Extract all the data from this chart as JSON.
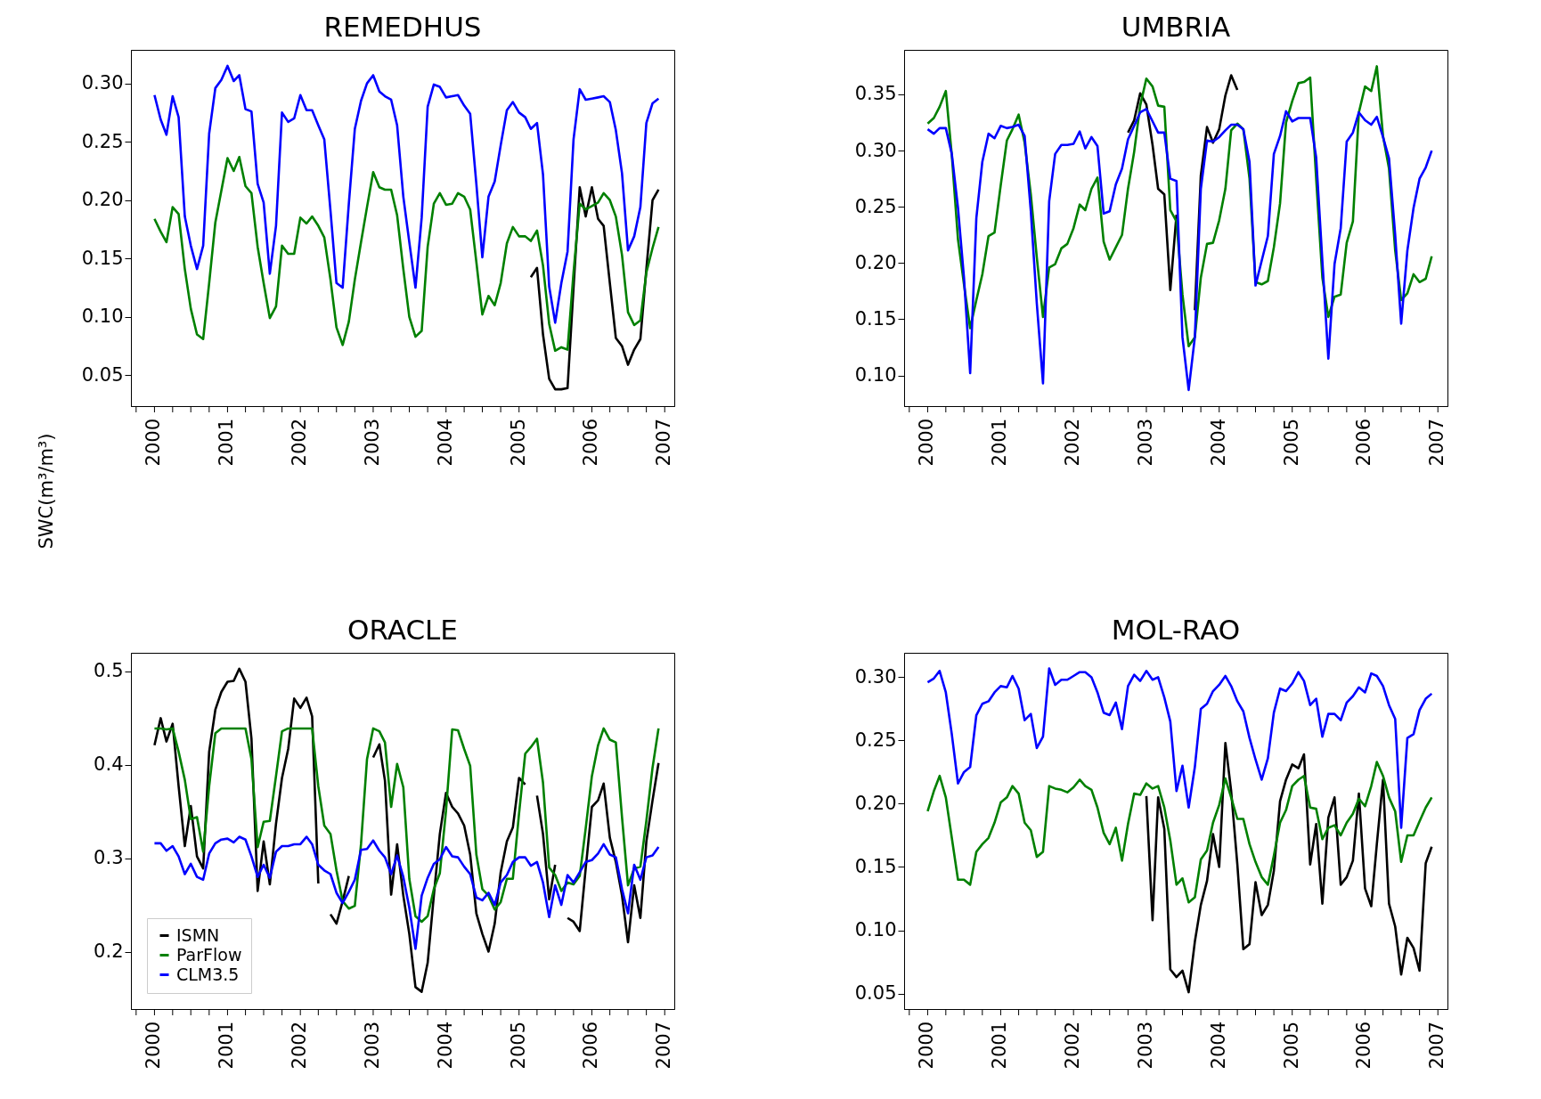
{
  "chart_data": [
    {
      "type": "line",
      "title": "REMEDHUS",
      "ylabel": "SWC(m³/m³)",
      "grid": false,
      "x": [
        "2000-01",
        "2000-02",
        "2000-03",
        "2000-04",
        "2000-05",
        "2000-06",
        "2000-07",
        "2000-08",
        "2000-09",
        "2000-10",
        "2000-11",
        "2000-12",
        "2001-01",
        "2001-02",
        "2001-03",
        "2001-04",
        "2001-05",
        "2001-06",
        "2001-07",
        "2001-08",
        "2001-09",
        "2001-10",
        "2001-11",
        "2001-12",
        "2002-01",
        "2002-02",
        "2002-03",
        "2002-04",
        "2002-05",
        "2002-06",
        "2002-07",
        "2002-08",
        "2002-09",
        "2002-10",
        "2002-11",
        "2002-12",
        "2003-01",
        "2003-02",
        "2003-03",
        "2003-04",
        "2003-05",
        "2003-06",
        "2003-07",
        "2003-08",
        "2003-09",
        "2003-10",
        "2003-11",
        "2003-12",
        "2004-01",
        "2004-02",
        "2004-03",
        "2004-04",
        "2004-05",
        "2004-06",
        "2004-07",
        "2004-08",
        "2004-09",
        "2004-10",
        "2004-11",
        "2004-12",
        "2005-01",
        "2005-02",
        "2005-03",
        "2005-04",
        "2005-05",
        "2005-06",
        "2005-07",
        "2005-08",
        "2005-09",
        "2005-10",
        "2005-11",
        "2005-12",
        "2006-01",
        "2006-02",
        "2006-03",
        "2006-04",
        "2006-05",
        "2006-06",
        "2006-07",
        "2006-08",
        "2006-09",
        "2006-10",
        "2006-11",
        "2006-12"
      ],
      "series": [
        {
          "color": "#000000",
          "x": [
            "2005-03",
            "2005-04",
            "2005-05",
            "2005-06",
            "2005-07",
            "2005-08",
            "2005-09",
            "2005-10",
            "2005-11",
            "2005-12",
            "2006-01",
            "2006-02",
            "2006-03",
            "2006-04",
            "2006-05",
            "2006-06",
            "2006-07",
            "2006-08",
            "2006-09",
            "2006-10",
            "2006-11",
            "2006-12"
          ],
          "values": [
            0.134,
            0.142,
            0.085,
            0.047,
            0.038,
            0.038,
            0.039,
            0.125,
            0.211,
            0.186,
            0.211,
            0.184,
            0.178,
            0.129,
            0.082,
            0.075,
            0.059,
            0.072,
            0.081,
            0.141,
            0.2,
            0.209
          ]
        },
        {
          "color": "#008000",
          "values": [
            0.184,
            0.173,
            0.164,
            0.194,
            0.188,
            0.141,
            0.107,
            0.085,
            0.081,
            0.129,
            0.181,
            0.208,
            0.236,
            0.225,
            0.237,
            0.212,
            0.206,
            0.16,
            0.129,
            0.099,
            0.109,
            0.161,
            0.154,
            0.154,
            0.185,
            0.18,
            0.186,
            0.178,
            0.168,
            0.132,
            0.091,
            0.076,
            0.096,
            0.132,
            0.164,
            0.194,
            0.224,
            0.211,
            0.209,
            0.209,
            0.187,
            0.141,
            0.1,
            0.083,
            0.088,
            0.16,
            0.197,
            0.206,
            0.196,
            0.197,
            0.206,
            0.203,
            0.192,
            0.147,
            0.102,
            0.118,
            0.11,
            0.129,
            0.163,
            0.177,
            0.169,
            0.169,
            0.165,
            0.174,
            0.144,
            0.094,
            0.071,
            0.074,
            0.072,
            0.138,
            0.197,
            0.192,
            0.195,
            0.198,
            0.206,
            0.2,
            0.186,
            0.153,
            0.104,
            0.093,
            0.097,
            0.138,
            0.159,
            0.177
          ]
        },
        {
          "color": "#0000ff",
          "values": [
            0.29,
            0.269,
            0.256,
            0.289,
            0.271,
            0.186,
            0.161,
            0.141,
            0.161,
            0.257,
            0.296,
            0.303,
            0.315,
            0.302,
            0.307,
            0.278,
            0.276,
            0.214,
            0.198,
            0.137,
            0.178,
            0.275,
            0.267,
            0.27,
            0.29,
            0.277,
            0.277,
            0.264,
            0.252,
            0.191,
            0.129,
            0.125,
            0.197,
            0.261,
            0.285,
            0.3,
            0.307,
            0.293,
            0.289,
            0.286,
            0.264,
            0.203,
            0.164,
            0.125,
            0.185,
            0.28,
            0.299,
            0.297,
            0.288,
            0.289,
            0.29,
            0.281,
            0.274,
            0.214,
            0.151,
            0.203,
            0.216,
            0.247,
            0.277,
            0.284,
            0.275,
            0.271,
            0.261,
            0.266,
            0.222,
            0.126,
            0.095,
            0.129,
            0.156,
            0.252,
            0.295,
            0.286,
            0.287,
            0.288,
            0.289,
            0.284,
            0.26,
            0.223,
            0.157,
            0.169,
            0.194,
            0.266,
            0.283,
            0.287
          ]
        }
      ],
      "xlim": [
        "1999-09-05",
        "2007-02-18"
      ],
      "ylim": [
        0.0236,
        0.3287
      ],
      "xticks": [
        {
          "value": "1999-10",
          "label": null
        },
        "2000",
        {
          "value": "2000-04",
          "label": null
        },
        {
          "value": "2000-07",
          "label": null
        },
        {
          "value": "2000-10",
          "label": null
        },
        "2001",
        {
          "value": "2001-04",
          "label": null
        },
        {
          "value": "2001-07",
          "label": null
        },
        {
          "value": "2001-10",
          "label": null
        },
        "2002",
        {
          "value": "2002-04",
          "label": null
        },
        {
          "value": "2002-07",
          "label": null
        },
        {
          "value": "2002-10",
          "label": null
        },
        "2003",
        {
          "value": "2003-04",
          "label": null
        },
        {
          "value": "2003-07",
          "label": null
        },
        {
          "value": "2003-10",
          "label": null
        },
        "2004",
        {
          "value": "2004-04",
          "label": null
        },
        {
          "value": "2004-07",
          "label": null
        },
        {
          "value": "2004-10",
          "label": null
        },
        "2005",
        {
          "value": "2005-04",
          "label": null
        },
        {
          "value": "2005-07",
          "label": null
        },
        {
          "value": "2005-10",
          "label": null
        },
        "2006",
        {
          "value": "2006-04",
          "label": null
        },
        {
          "value": "2006-07",
          "label": null
        },
        {
          "value": "2006-10",
          "label": null
        },
        "2007"
      ],
      "yticks": [
        {
          "value": 0.05,
          "label": "0.05"
        },
        {
          "value": 0.1,
          "label": "0.10"
        },
        {
          "value": 0.15,
          "label": "0.15"
        },
        {
          "value": 0.2,
          "label": "0.20"
        },
        {
          "value": 0.25,
          "label": "0.25"
        },
        {
          "value": 0.3,
          "label": "0.30"
        }
      ]
    },
    {
      "type": "line",
      "title": "UMBRIA",
      "grid": false,
      "x": [
        "2000-01",
        "2000-02",
        "2000-03",
        "2000-04",
        "2000-05",
        "2000-06",
        "2000-07",
        "2000-08",
        "2000-09",
        "2000-10",
        "2000-11",
        "2000-12",
        "2001-01",
        "2001-02",
        "2001-03",
        "2001-04",
        "2001-05",
        "2001-06",
        "2001-07",
        "2001-08",
        "2001-09",
        "2001-10",
        "2001-11",
        "2001-12",
        "2002-01",
        "2002-02",
        "2002-03",
        "2002-04",
        "2002-05",
        "2002-06",
        "2002-07",
        "2002-08",
        "2002-09",
        "2002-10",
        "2002-11",
        "2002-12",
        "2003-01",
        "2003-02",
        "2003-03",
        "2003-04",
        "2003-05",
        "2003-06",
        "2003-07",
        "2003-08",
        "2003-09",
        "2003-10",
        "2003-11",
        "2003-12",
        "2004-01",
        "2004-02",
        "2004-03",
        "2004-04",
        "2004-05",
        "2004-06",
        "2004-07",
        "2004-08",
        "2004-09",
        "2004-10",
        "2004-11",
        "2004-12",
        "2005-01",
        "2005-02",
        "2005-03",
        "2005-04",
        "2005-05",
        "2005-06",
        "2005-07",
        "2005-08",
        "2005-09",
        "2005-10",
        "2005-11",
        "2005-12",
        "2006-01",
        "2006-02",
        "2006-03",
        "2006-04",
        "2006-05",
        "2006-06",
        "2006-07",
        "2006-08",
        "2006-09",
        "2006-10",
        "2006-11",
        "2006-12"
      ],
      "series": [
        {
          "color": "#000000",
          "x": [
            "2002-10",
            "2002-11",
            "2002-12",
            "2003-01",
            "2003-02",
            "2003-03",
            "2003-04",
            "2003-05",
            "2003-06",
            "2003-07",
            "2003-08",
            "2003-09",
            "2003-10",
            "2003-11",
            "2003-12",
            "2004-01",
            "2004-02",
            "2004-03",
            "2004-04"
          ],
          "values": [
            0.316,
            0.327,
            0.351,
            0.341,
            0.305,
            0.266,
            0.261,
            0.176,
            0.243,
            null,
            null,
            0.158,
            0.278,
            0.321,
            0.307,
            0.319,
            0.349,
            0.367,
            0.354
          ]
        },
        {
          "color": "#008000",
          "values": [
            0.324,
            0.329,
            0.339,
            0.353,
            0.296,
            0.221,
            0.181,
            0.142,
            0.167,
            0.19,
            0.224,
            0.227,
            0.269,
            0.309,
            0.319,
            0.332,
            0.307,
            0.261,
            0.205,
            0.152,
            0.196,
            0.199,
            0.213,
            0.217,
            0.231,
            0.252,
            0.247,
            0.266,
            0.276,
            0.219,
            0.203,
            0.214,
            0.225,
            0.266,
            0.299,
            0.34,
            0.364,
            0.357,
            0.34,
            0.339,
            0.247,
            0.237,
            0.172,
            0.126,
            0.134,
            0.187,
            0.217,
            0.218,
            0.238,
            0.266,
            0.318,
            0.324,
            0.319,
            0.275,
            0.183,
            0.181,
            0.184,
            0.214,
            0.253,
            0.325,
            0.344,
            0.36,
            0.361,
            0.365,
            0.275,
            0.187,
            0.152,
            0.17,
            0.172,
            0.218,
            0.237,
            0.334,
            0.357,
            0.353,
            0.375,
            0.313,
            0.284,
            0.211,
            0.167,
            0.173,
            0.19,
            0.183,
            0.186,
            0.206
          ]
        },
        {
          "color": "#0000ff",
          "values": [
            0.319,
            0.315,
            0.32,
            0.32,
            0.297,
            0.249,
            0.187,
            0.102,
            0.24,
            0.29,
            0.315,
            0.311,
            0.322,
            0.32,
            0.321,
            0.323,
            0.313,
            0.246,
            0.164,
            0.093,
            0.255,
            0.297,
            0.305,
            0.305,
            0.306,
            0.317,
            0.302,
            0.312,
            0.304,
            0.244,
            0.246,
            0.27,
            0.284,
            0.31,
            0.322,
            0.334,
            0.337,
            0.326,
            0.316,
            0.316,
            0.275,
            0.273,
            0.134,
            0.087,
            0.134,
            0.266,
            0.309,
            0.308,
            0.312,
            0.318,
            0.323,
            0.323,
            0.319,
            0.29,
            0.18,
            0.202,
            0.224,
            0.297,
            0.313,
            0.335,
            0.326,
            0.329,
            0.329,
            0.329,
            0.294,
            0.202,
            0.115,
            0.199,
            0.231,
            0.308,
            0.316,
            0.334,
            0.327,
            0.323,
            0.33,
            0.312,
            0.293,
            0.225,
            0.146,
            0.211,
            0.249,
            0.275,
            0.285,
            0.3
          ]
        }
      ],
      "xlim": [
        "1999-09-05",
        "2007-02-18"
      ],
      "ylim": [
        0.0727,
        0.3896
      ],
      "xticks": [
        {
          "value": "1999-10",
          "label": null
        },
        "2000",
        {
          "value": "2000-04",
          "label": null
        },
        {
          "value": "2000-07",
          "label": null
        },
        {
          "value": "2000-10",
          "label": null
        },
        "2001",
        {
          "value": "2001-04",
          "label": null
        },
        {
          "value": "2001-07",
          "label": null
        },
        {
          "value": "2001-10",
          "label": null
        },
        "2002",
        {
          "value": "2002-04",
          "label": null
        },
        {
          "value": "2002-07",
          "label": null
        },
        {
          "value": "2002-10",
          "label": null
        },
        "2003",
        {
          "value": "2003-04",
          "label": null
        },
        {
          "value": "2003-07",
          "label": null
        },
        {
          "value": "2003-10",
          "label": null
        },
        "2004",
        {
          "value": "2004-04",
          "label": null
        },
        {
          "value": "2004-07",
          "label": null
        },
        {
          "value": "2004-10",
          "label": null
        },
        "2005",
        {
          "value": "2005-04",
          "label": null
        },
        {
          "value": "2005-07",
          "label": null
        },
        {
          "value": "2005-10",
          "label": null
        },
        "2006",
        {
          "value": "2006-04",
          "label": null
        },
        {
          "value": "2006-07",
          "label": null
        },
        {
          "value": "2006-10",
          "label": null
        },
        "2007"
      ],
      "yticks": [
        {
          "value": 0.1,
          "label": "0.10"
        },
        {
          "value": 0.15,
          "label": "0.15"
        },
        {
          "value": 0.2,
          "label": "0.20"
        },
        {
          "value": 0.25,
          "label": "0.25"
        },
        {
          "value": 0.3,
          "label": "0.30"
        },
        {
          "value": 0.35,
          "label": "0.35"
        }
      ]
    },
    {
      "type": "line",
      "title": "ORACLE",
      "grid": false,
      "legend": "bottom left",
      "x": [
        "2000-01",
        "2000-02",
        "2000-03",
        "2000-04",
        "2000-05",
        "2000-06",
        "2000-07",
        "2000-08",
        "2000-09",
        "2000-10",
        "2000-11",
        "2000-12",
        "2001-01",
        "2001-02",
        "2001-03",
        "2001-04",
        "2001-05",
        "2001-06",
        "2001-07",
        "2001-08",
        "2001-09",
        "2001-10",
        "2001-11",
        "2001-12",
        "2002-01",
        "2002-02",
        "2002-03",
        "2002-04",
        "2002-05",
        "2002-06",
        "2002-07",
        "2002-08",
        "2002-09",
        "2002-10",
        "2002-11",
        "2002-12",
        "2003-01",
        "2003-02",
        "2003-03",
        "2003-04",
        "2003-05",
        "2003-06",
        "2003-07",
        "2003-08",
        "2003-09",
        "2003-10",
        "2003-11",
        "2003-12",
        "2004-01",
        "2004-02",
        "2004-03",
        "2004-04",
        "2004-05",
        "2004-06",
        "2004-07",
        "2004-08",
        "2004-09",
        "2004-10",
        "2004-11",
        "2004-12",
        "2005-01",
        "2005-02",
        "2005-03",
        "2005-04",
        "2005-05",
        "2005-06",
        "2005-07",
        "2005-08",
        "2005-09",
        "2005-10",
        "2005-11",
        "2005-12",
        "2006-01",
        "2006-02",
        "2006-03",
        "2006-04",
        "2006-05",
        "2006-06",
        "2006-07",
        "2006-08",
        "2006-09",
        "2006-10",
        "2006-11",
        "2006-12"
      ],
      "series": [
        {
          "name": "ISMN",
          "color": "#000000",
          "values": [
            0.421,
            0.45,
            0.425,
            0.444,
            0.377,
            0.313,
            0.356,
            0.302,
            0.289,
            0.414,
            0.459,
            0.478,
            0.489,
            0.49,
            0.503,
            0.489,
            0.428,
            0.265,
            0.318,
            0.272,
            0.337,
            0.386,
            0.417,
            0.471,
            0.461,
            0.472,
            0.452,
            0.273,
            null,
            0.24,
            0.23,
            0.254,
            0.281,
            null,
            null,
            null,
            0.408,
            0.422,
            0.383,
            0.261,
            0.315,
            0.26,
            0.219,
            0.162,
            0.157,
            0.188,
            0.26,
            0.326,
            0.37,
            0.355,
            0.348,
            0.335,
            0.304,
            0.241,
            0.219,
            0.2,
            0.23,
            0.285,
            0.318,
            0.333,
            0.386,
            0.379,
            null,
            0.367,
            0.326,
            0.256,
            0.293,
            null,
            0.236,
            0.232,
            0.222,
            0.289,
            0.355,
            0.362,
            0.38,
            0.322,
            0.296,
            0.26,
            0.21,
            0.271,
            0.236,
            0.318,
            0.362,
            0.402
          ]
        },
        {
          "name": "ParFlow",
          "color": "#008000",
          "values": [
            0.439,
            0.439,
            0.438,
            0.439,
            0.414,
            0.384,
            0.342,
            0.344,
            0.307,
            0.377,
            0.434,
            0.439,
            0.439,
            0.439,
            0.439,
            0.439,
            0.406,
            0.312,
            0.339,
            0.34,
            0.388,
            0.436,
            0.439,
            0.439,
            0.439,
            0.439,
            0.439,
            0.377,
            0.335,
            0.326,
            0.287,
            0.254,
            0.246,
            0.249,
            0.315,
            0.406,
            0.439,
            0.436,
            0.424,
            0.355,
            0.401,
            0.376,
            0.278,
            0.238,
            0.232,
            0.238,
            0.267,
            0.284,
            0.351,
            0.438,
            0.437,
            0.417,
            0.399,
            0.304,
            0.267,
            0.26,
            0.245,
            0.253,
            0.278,
            0.278,
            0.348,
            0.412,
            0.419,
            0.428,
            0.381,
            0.29,
            0.282,
            0.265,
            0.274,
            0.272,
            0.281,
            0.332,
            0.388,
            0.421,
            0.439,
            0.427,
            0.424,
            0.344,
            0.271,
            0.289,
            0.291,
            0.34,
            0.397,
            0.439
          ]
        },
        {
          "name": "CLM3.5",
          "color": "#0000ff",
          "values": [
            0.316,
            0.316,
            0.308,
            0.313,
            0.302,
            0.283,
            0.294,
            0.28,
            0.277,
            0.305,
            0.316,
            0.32,
            0.321,
            0.317,
            0.323,
            0.32,
            0.302,
            0.28,
            0.293,
            0.279,
            0.307,
            0.313,
            0.313,
            0.315,
            0.315,
            0.323,
            0.315,
            0.293,
            0.287,
            0.283,
            0.263,
            0.252,
            0.264,
            0.277,
            0.309,
            0.31,
            0.319,
            0.308,
            0.301,
            0.283,
            0.303,
            0.28,
            0.247,
            0.203,
            0.26,
            0.279,
            0.294,
            0.299,
            0.312,
            0.302,
            0.301,
            0.291,
            0.283,
            0.258,
            0.255,
            0.263,
            0.25,
            0.274,
            0.282,
            0.296,
            0.301,
            0.301,
            0.292,
            0.296,
            0.274,
            0.237,
            0.271,
            0.25,
            0.282,
            0.274,
            0.285,
            0.296,
            0.298,
            0.305,
            0.315,
            0.304,
            0.301,
            0.267,
            0.241,
            0.293,
            0.277,
            0.301,
            0.303,
            0.312
          ]
        }
      ],
      "xlim": [
        "1999-09-05",
        "2007-02-18"
      ],
      "ylim": [
        0.1385,
        0.52
      ],
      "xticks": [
        {
          "value": "1999-10",
          "label": null
        },
        "2000",
        {
          "value": "2000-04",
          "label": null
        },
        {
          "value": "2000-07",
          "label": null
        },
        {
          "value": "2000-10",
          "label": null
        },
        "2001",
        {
          "value": "2001-04",
          "label": null
        },
        {
          "value": "2001-07",
          "label": null
        },
        {
          "value": "2001-10",
          "label": null
        },
        "2002",
        {
          "value": "2002-04",
          "label": null
        },
        {
          "value": "2002-07",
          "label": null
        },
        {
          "value": "2002-10",
          "label": null
        },
        "2003",
        {
          "value": "2003-04",
          "label": null
        },
        {
          "value": "2003-07",
          "label": null
        },
        {
          "value": "2003-10",
          "label": null
        },
        "2004",
        {
          "value": "2004-04",
          "label": null
        },
        {
          "value": "2004-07",
          "label": null
        },
        {
          "value": "2004-10",
          "label": null
        },
        "2005",
        {
          "value": "2005-04",
          "label": null
        },
        {
          "value": "2005-07",
          "label": null
        },
        {
          "value": "2005-10",
          "label": null
        },
        "2006",
        {
          "value": "2006-04",
          "label": null
        },
        {
          "value": "2006-07",
          "label": null
        },
        {
          "value": "2006-10",
          "label": null
        },
        "2007"
      ],
      "yticks": [
        {
          "value": 0.2,
          "label": "0.2"
        },
        {
          "value": 0.3,
          "label": "0.3"
        },
        {
          "value": 0.4,
          "label": "0.4"
        },
        {
          "value": 0.5,
          "label": "0.5"
        }
      ]
    },
    {
      "type": "line",
      "title": "MOL-RAO",
      "grid": false,
      "x": [
        "2000-01",
        "2000-02",
        "2000-03",
        "2000-04",
        "2000-05",
        "2000-06",
        "2000-07",
        "2000-08",
        "2000-09",
        "2000-10",
        "2000-11",
        "2000-12",
        "2001-01",
        "2001-02",
        "2001-03",
        "2001-04",
        "2001-05",
        "2001-06",
        "2001-07",
        "2001-08",
        "2001-09",
        "2001-10",
        "2001-11",
        "2001-12",
        "2002-01",
        "2002-02",
        "2002-03",
        "2002-04",
        "2002-05",
        "2002-06",
        "2002-07",
        "2002-08",
        "2002-09",
        "2002-10",
        "2002-11",
        "2002-12",
        "2003-01",
        "2003-02",
        "2003-03",
        "2003-04",
        "2003-05",
        "2003-06",
        "2003-07",
        "2003-08",
        "2003-09",
        "2003-10",
        "2003-11",
        "2003-12",
        "2004-01",
        "2004-02",
        "2004-03",
        "2004-04",
        "2004-05",
        "2004-06",
        "2004-07",
        "2004-08",
        "2004-09",
        "2004-10",
        "2004-11",
        "2004-12",
        "2005-01",
        "2005-02",
        "2005-03",
        "2005-04",
        "2005-05",
        "2005-06",
        "2005-07",
        "2005-08",
        "2005-09",
        "2005-10",
        "2005-11",
        "2005-12",
        "2006-01",
        "2006-02",
        "2006-03",
        "2006-04",
        "2006-05",
        "2006-06",
        "2006-07",
        "2006-08",
        "2006-09",
        "2006-10",
        "2006-11",
        "2006-12"
      ],
      "series": [
        {
          "color": "#000000",
          "x": [
            "2003-01",
            "2003-02",
            "2003-03",
            "2003-04",
            "2003-05",
            "2003-06",
            "2003-07",
            "2003-08",
            "2003-09",
            "2003-10",
            "2003-11",
            "2003-12",
            "2004-01",
            "2004-02",
            "2004-03",
            "2004-04",
            "2004-05",
            "2004-06",
            "2004-07",
            "2004-08",
            "2004-09",
            "2004-10",
            "2004-11",
            "2004-12",
            "2005-01",
            "2005-02",
            "2005-03",
            "2005-04",
            "2005-05",
            "2005-06",
            "2005-07",
            "2005-08",
            "2005-09",
            "2005-10",
            "2005-11",
            "2005-12",
            "2006-01",
            "2006-02",
            "2006-03",
            "2006-04",
            "2006-05",
            "2006-06",
            "2006-07",
            "2006-08",
            "2006-09",
            "2006-10",
            "2006-11",
            "2006-12"
          ],
          "values": [
            0.206,
            0.108,
            0.205,
            0.18,
            0.069,
            0.063,
            0.068,
            0.051,
            0.091,
            0.12,
            0.139,
            0.176,
            0.15,
            0.248,
            0.21,
            0.152,
            0.085,
            0.089,
            0.138,
            0.112,
            0.12,
            0.147,
            0.202,
            0.219,
            0.231,
            0.228,
            0.239,
            0.152,
            0.184,
            0.121,
            0.189,
            0.205,
            0.136,
            0.142,
            0.155,
            0.208,
            0.133,
            0.119,
            0.168,
            0.219,
            0.121,
            0.103,
            0.065,
            0.094,
            0.086,
            0.068,
            0.153,
            0.166
          ]
        },
        {
          "color": "#008000",
          "values": [
            0.194,
            0.21,
            0.222,
            0.205,
            0.173,
            0.14,
            0.14,
            0.136,
            0.162,
            0.168,
            0.173,
            0.185,
            0.201,
            0.205,
            0.214,
            0.208,
            0.185,
            0.179,
            0.158,
            0.162,
            0.214,
            0.212,
            0.211,
            0.209,
            0.213,
            0.219,
            0.214,
            0.211,
            0.197,
            0.177,
            0.168,
            0.181,
            0.155,
            0.184,
            0.208,
            0.207,
            0.216,
            0.212,
            0.214,
            0.197,
            0.171,
            0.136,
            0.141,
            0.122,
            0.126,
            0.156,
            0.163,
            0.185,
            0.199,
            0.22,
            0.205,
            0.188,
            0.188,
            0.168,
            0.154,
            0.142,
            0.136,
            0.159,
            0.185,
            0.195,
            0.214,
            0.219,
            0.222,
            0.197,
            0.196,
            0.172,
            0.181,
            0.183,
            0.175,
            0.185,
            0.192,
            0.204,
            0.198,
            0.214,
            0.233,
            0.222,
            0.205,
            0.194,
            0.154,
            0.175,
            0.175,
            0.186,
            0.197,
            0.205
          ]
        },
        {
          "color": "#0000ff",
          "values": [
            0.296,
            0.299,
            0.305,
            0.288,
            0.255,
            0.216,
            0.225,
            0.229,
            0.27,
            0.279,
            0.281,
            0.288,
            0.293,
            0.292,
            0.301,
            0.291,
            0.266,
            0.271,
            0.244,
            0.253,
            0.307,
            0.294,
            0.298,
            0.298,
            0.301,
            0.304,
            0.304,
            0.3,
            0.288,
            0.272,
            0.27,
            0.28,
            0.259,
            0.293,
            0.302,
            0.297,
            0.305,
            0.298,
            0.3,
            0.284,
            0.265,
            0.21,
            0.23,
            0.197,
            0.229,
            0.275,
            0.279,
            0.289,
            0.294,
            0.301,
            0.293,
            0.281,
            0.273,
            0.252,
            0.235,
            0.219,
            0.236,
            0.272,
            0.291,
            0.289,
            0.295,
            0.304,
            0.297,
            0.278,
            0.283,
            0.253,
            0.271,
            0.271,
            0.266,
            0.28,
            0.285,
            0.292,
            0.288,
            0.303,
            0.301,
            0.293,
            0.278,
            0.267,
            0.181,
            0.252,
            0.255,
            0.274,
            0.283,
            0.287
          ]
        }
      ],
      "xlim": [
        "1999-09-05",
        "2007-02-18"
      ],
      "ylim": [
        0.0377,
        0.3193
      ],
      "xticks": [
        {
          "value": "1999-10",
          "label": null
        },
        "2000",
        {
          "value": "2000-04",
          "label": null
        },
        {
          "value": "2000-07",
          "label": null
        },
        {
          "value": "2000-10",
          "label": null
        },
        "2001",
        {
          "value": "2001-04",
          "label": null
        },
        {
          "value": "2001-07",
          "label": null
        },
        {
          "value": "2001-10",
          "label": null
        },
        "2002",
        {
          "value": "2002-04",
          "label": null
        },
        {
          "value": "2002-07",
          "label": null
        },
        {
          "value": "2002-10",
          "label": null
        },
        "2003",
        {
          "value": "2003-04",
          "label": null
        },
        {
          "value": "2003-07",
          "label": null
        },
        {
          "value": "2003-10",
          "label": null
        },
        "2004",
        {
          "value": "2004-04",
          "label": null
        },
        {
          "value": "2004-07",
          "label": null
        },
        {
          "value": "2004-10",
          "label": null
        },
        "2005",
        {
          "value": "2005-04",
          "label": null
        },
        {
          "value": "2005-07",
          "label": null
        },
        {
          "value": "2005-10",
          "label": null
        },
        "2006",
        {
          "value": "2006-04",
          "label": null
        },
        {
          "value": "2006-07",
          "label": null
        },
        {
          "value": "2006-10",
          "label": null
        },
        "2007"
      ],
      "yticks": [
        {
          "value": 0.05,
          "label": "0.05"
        },
        {
          "value": 0.1,
          "label": "0.10"
        },
        {
          "value": 0.15,
          "label": "0.15"
        },
        {
          "value": 0.2,
          "label": "0.20"
        },
        {
          "value": 0.25,
          "label": "0.25"
        },
        {
          "value": 0.3,
          "label": "0.30"
        }
      ]
    }
  ]
}
